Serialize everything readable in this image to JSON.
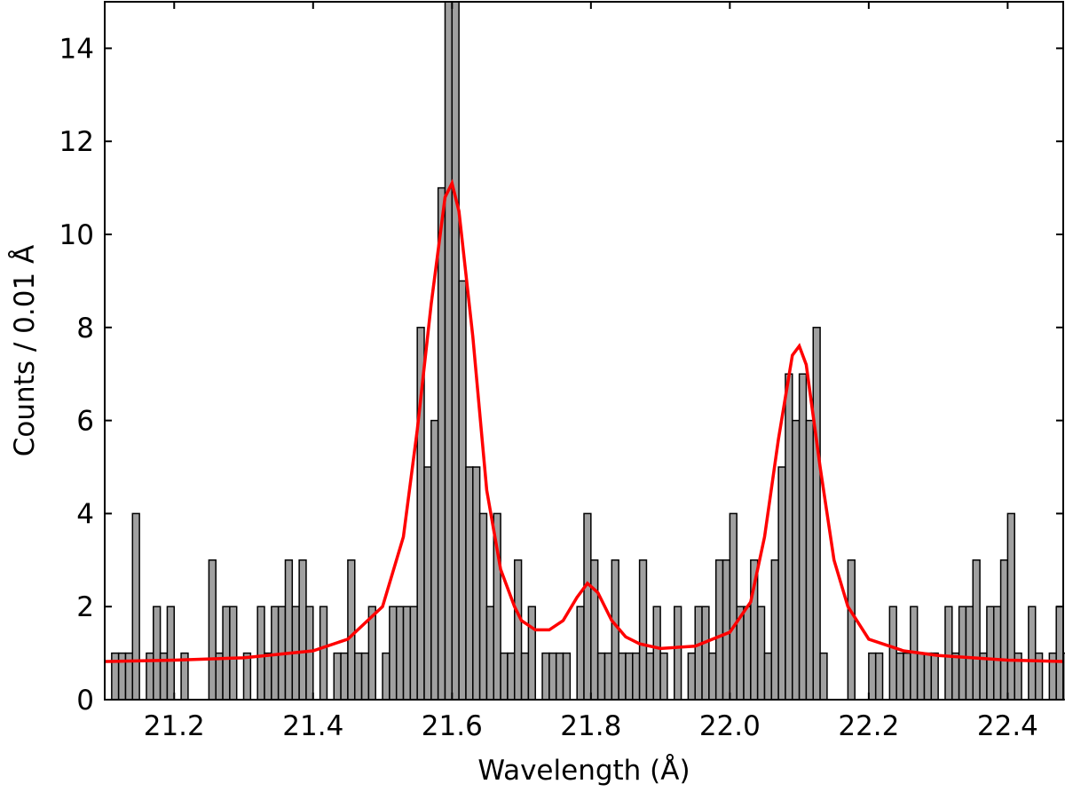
{
  "chart_data": {
    "type": "bar",
    "title": "",
    "xlabel": "Wavelength (Å)",
    "ylabel": "Counts / 0.01 Å",
    "xlim": [
      21.1,
      22.48
    ],
    "ylim": [
      0,
      15
    ],
    "x_ticks": [
      "21.2",
      "21.4",
      "21.6",
      "21.8",
      "22.0",
      "22.2",
      "22.4"
    ],
    "y_ticks": [
      "0",
      "2",
      "4",
      "6",
      "8",
      "10",
      "12",
      "14"
    ],
    "grid": false,
    "bin_width": 0.01,
    "bin_start": 21.11,
    "counts": [
      1,
      1,
      1,
      4,
      0,
      1,
      2,
      1,
      2,
      0,
      1,
      0,
      0,
      0,
      3,
      1,
      2,
      2,
      0,
      1,
      0,
      2,
      1,
      2,
      2,
      3,
      2,
      3,
      2,
      0,
      2,
      0,
      1,
      1,
      3,
      1,
      1,
      2,
      0,
      1,
      2,
      2,
      2,
      2,
      8,
      5,
      6,
      11,
      15,
      15,
      9,
      5,
      5,
      4,
      2,
      4,
      1,
      1,
      3,
      1,
      2,
      0,
      1,
      1,
      1,
      1,
      0,
      2,
      4,
      3,
      1,
      1,
      3,
      1,
      1,
      1,
      3,
      1,
      2,
      1,
      0,
      2,
      0,
      1,
      2,
      2,
      1,
      3,
      3,
      4,
      2,
      2,
      3,
      2,
      1,
      3,
      5,
      7,
      6,
      7,
      6,
      8,
      1,
      0,
      0,
      0,
      3,
      0,
      0,
      1,
      1,
      0,
      2,
      1,
      1,
      2,
      1,
      1,
      1,
      0,
      2,
      1,
      2,
      2,
      3,
      1,
      2,
      2,
      3,
      4,
      1,
      0,
      2,
      1,
      0,
      1,
      2,
      1,
      2
    ],
    "bar_fill_color": "#a0a0a0",
    "bar_edge_color": "#000000",
    "series": [
      {
        "type": "line",
        "color": "#ff0000",
        "x": [
          21.1,
          21.2,
          21.3,
          21.4,
          21.45,
          21.5,
          21.53,
          21.55,
          21.57,
          21.59,
          21.6,
          21.61,
          21.63,
          21.65,
          21.67,
          21.69,
          21.7,
          21.72,
          21.74,
          21.76,
          21.78,
          21.795,
          21.81,
          21.83,
          21.85,
          21.87,
          21.9,
          21.95,
          22.0,
          22.03,
          22.05,
          22.07,
          22.09,
          22.1,
          22.11,
          22.13,
          22.15,
          22.17,
          22.2,
          22.25,
          22.3,
          22.4,
          22.48
        ],
        "y": [
          0.82,
          0.85,
          0.9,
          1.05,
          1.3,
          2.0,
          3.5,
          5.8,
          8.5,
          10.8,
          11.1,
          10.5,
          7.8,
          4.5,
          2.8,
          2.0,
          1.7,
          1.5,
          1.5,
          1.7,
          2.2,
          2.5,
          2.3,
          1.7,
          1.35,
          1.2,
          1.1,
          1.15,
          1.45,
          2.1,
          3.5,
          5.6,
          7.4,
          7.6,
          7.2,
          5.0,
          3.0,
          2.0,
          1.3,
          1.05,
          0.95,
          0.85,
          0.82
        ]
      }
    ]
  }
}
